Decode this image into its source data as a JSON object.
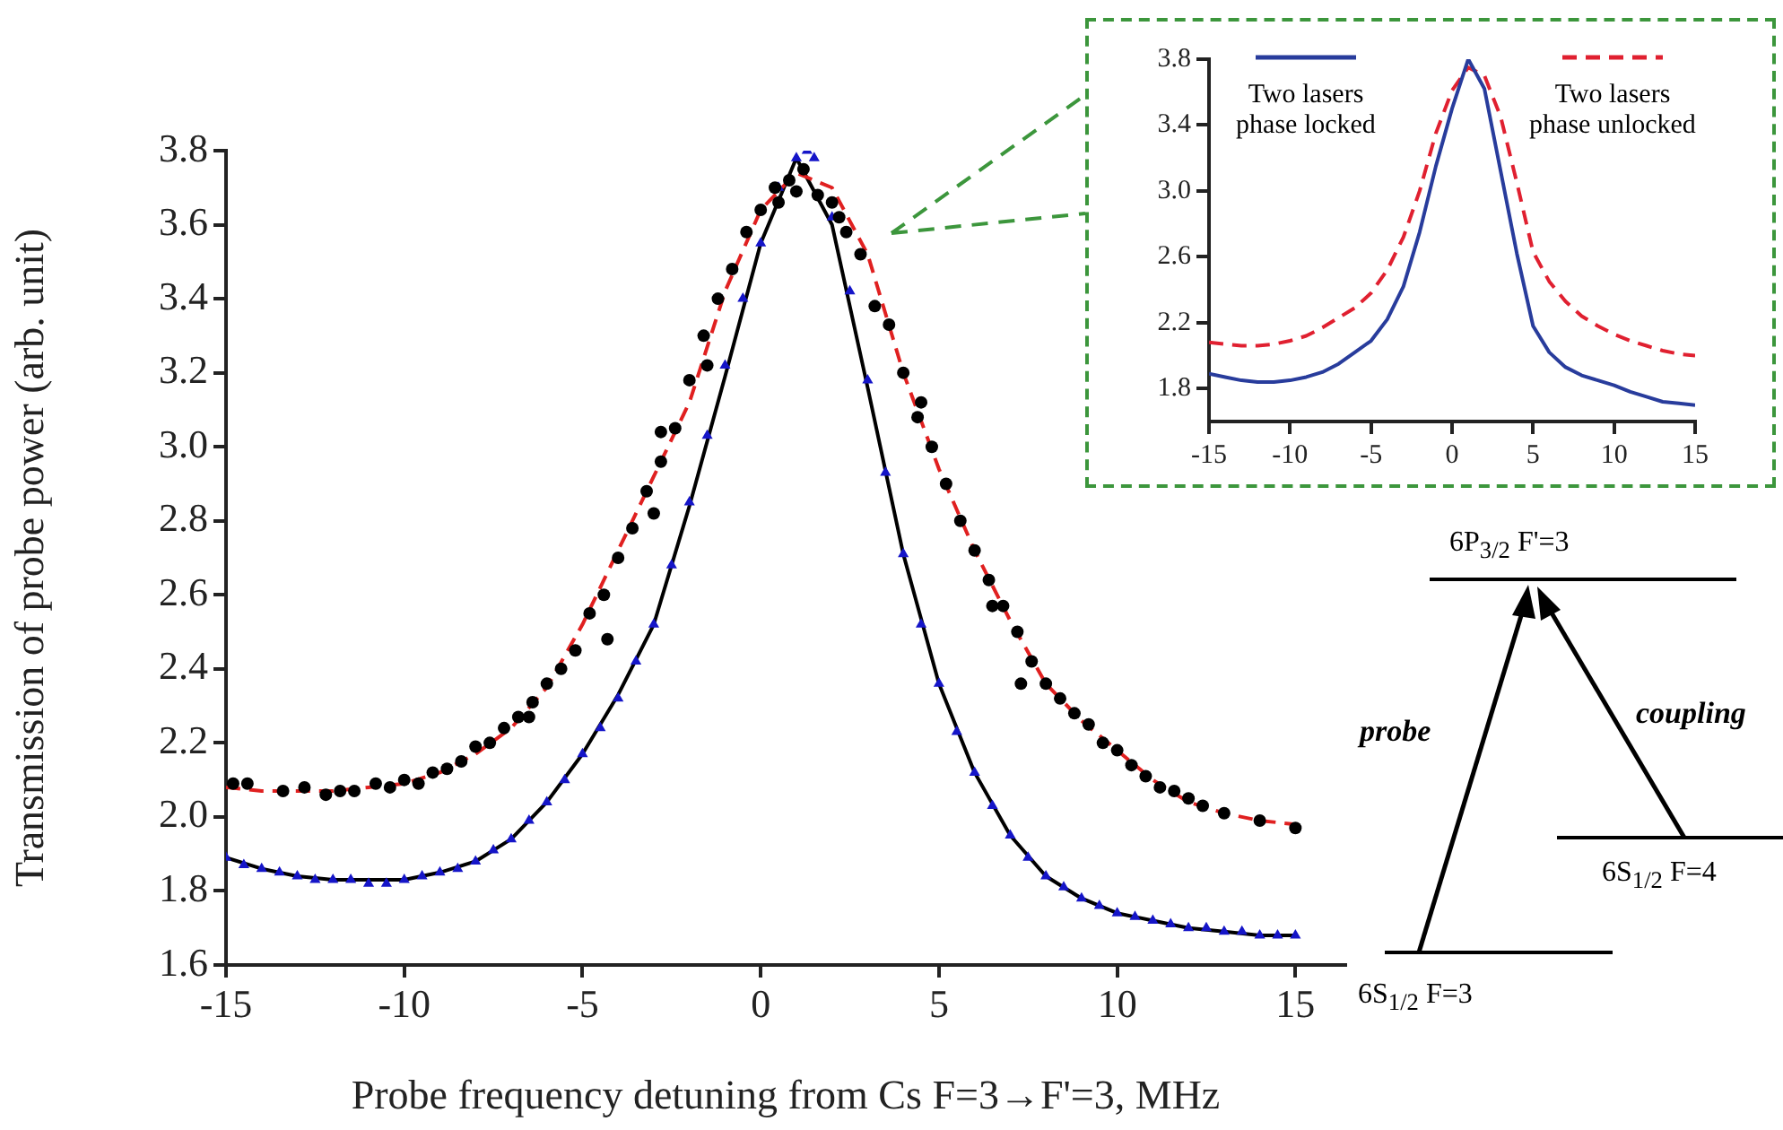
{
  "chart_data": [
    {
      "type": "scatter",
      "xlabel": "Probe frequency detuning from Cs F=3→F'=3, MHz",
      "ylabel": "Transmission of probe power (arb. unit)",
      "xlim": [
        -15,
        16.4
      ],
      "xticks": [
        -15,
        -10,
        -5,
        0,
        5,
        10,
        15
      ],
      "ylim": [
        1.6,
        3.8
      ],
      "yticks": [
        {
          "value": 1.6,
          "label": "1.6"
        },
        {
          "value": 1.8,
          "label": "1.8"
        },
        {
          "value": 2,
          "label": "2.0"
        },
        {
          "value": 2.2,
          "label": "2.2"
        },
        {
          "value": 2.4,
          "label": "2.4"
        },
        {
          "value": 2.6,
          "label": "2.6"
        },
        {
          "value": 2.8,
          "label": "2.8"
        },
        {
          "value": 3,
          "label": "3.0"
        },
        {
          "value": 3.2,
          "label": "3.2"
        },
        {
          "value": 3.4,
          "label": "3.4"
        },
        {
          "value": 3.6,
          "label": "3.6"
        },
        {
          "value": 3.8,
          "label": "3.8"
        }
      ],
      "grid": false,
      "legend": false,
      "annotations": [
        "6P$_{3/2}$ F'=3",
        "probe",
        "coupling",
        "6S$_{1/2}$ F=4",
        "6S$_{1/2}$ F=3"
      ],
      "series": [
        {
          "type": "scatter",
          "marker": "circle",
          "color": "#000000",
          "x": [
            -14.8,
            -14.4,
            -13.4,
            -12.8,
            -12.2,
            -11.8,
            -11.4,
            -10.8,
            -10.4,
            -10.0,
            -9.6,
            -9.2,
            -8.8,
            -8.4,
            -8.0,
            -7.6,
            -7.2,
            -6.8,
            -6.5,
            -6.4,
            -6.0,
            -5.6,
            -5.2,
            -4.8,
            -4.4,
            -4.3,
            -4.0,
            -3.6,
            -3.2,
            -3.0,
            -2.8,
            -2.8,
            -2.4,
            -2.0,
            -1.6,
            -1.5,
            -1.2,
            -0.8,
            -0.4,
            0.0,
            0.4,
            0.5,
            0.8,
            1.0,
            1.2,
            1.6,
            2.0,
            2.2,
            2.4,
            2.8,
            3.2,
            3.6,
            4.0,
            4.4,
            4.5,
            4.8,
            5.2,
            5.6,
            6.0,
            6.4,
            6.5,
            6.8,
            7.2,
            7.3,
            7.6,
            8.0,
            8.4,
            8.8,
            9.2,
            9.6,
            10.0,
            10.4,
            10.8,
            11.2,
            11.6,
            12.0,
            12.4,
            13.0,
            14.0,
            15.0
          ],
          "values": [
            2.09,
            2.09,
            2.07,
            2.08,
            2.06,
            2.07,
            2.07,
            2.09,
            2.08,
            2.1,
            2.09,
            2.12,
            2.13,
            2.15,
            2.19,
            2.2,
            2.24,
            2.27,
            2.27,
            2.31,
            2.36,
            2.4,
            2.45,
            2.55,
            2.6,
            2.48,
            2.7,
            2.78,
            2.88,
            2.82,
            2.96,
            3.04,
            3.05,
            3.18,
            3.3,
            3.22,
            3.4,
            3.48,
            3.58,
            3.64,
            3.7,
            3.66,
            3.72,
            3.69,
            3.75,
            3.68,
            3.66,
            3.62,
            3.58,
            3.52,
            3.38,
            3.33,
            3.2,
            3.08,
            3.12,
            3.0,
            2.9,
            2.8,
            2.72,
            2.64,
            2.57,
            2.57,
            2.5,
            2.36,
            2.42,
            2.36,
            2.32,
            2.28,
            2.25,
            2.2,
            2.18,
            2.14,
            2.11,
            2.08,
            2.07,
            2.05,
            2.03,
            2.01,
            1.99,
            1.97
          ]
        },
        {
          "type": "scatter",
          "marker": "triangle",
          "color": "#1515c8",
          "x": [
            -15,
            -14.5,
            -14,
            -13.5,
            -13,
            -12.5,
            -12,
            -11.5,
            -11,
            -10.5,
            -10,
            -9.5,
            -9,
            -8.5,
            -8,
            -7.5,
            -7,
            -6.5,
            -6,
            -5.5,
            -5,
            -4.5,
            -4,
            -3.5,
            -3,
            -2.5,
            -2,
            -1.5,
            -1,
            -0.5,
            0,
            0.5,
            1,
            1.3,
            1.5,
            2,
            2.5,
            3,
            3.5,
            4,
            4.5,
            5,
            5.5,
            6,
            6.5,
            7,
            7.5,
            8,
            8.5,
            9,
            9.5,
            10,
            10.5,
            11,
            11.5,
            12,
            12.5,
            13,
            13.5,
            14,
            14.5,
            15
          ],
          "values": [
            1.89,
            1.87,
            1.86,
            1.85,
            1.84,
            1.83,
            1.83,
            1.83,
            1.82,
            1.82,
            1.83,
            1.84,
            1.85,
            1.86,
            1.88,
            1.91,
            1.94,
            1.99,
            2.04,
            2.1,
            2.17,
            2.24,
            2.32,
            2.42,
            2.52,
            2.68,
            2.85,
            3.03,
            3.22,
            3.4,
            3.55,
            3.7,
            3.78,
            3.8,
            3.78,
            3.62,
            3.42,
            3.18,
            2.93,
            2.71,
            2.52,
            2.36,
            2.23,
            2.12,
            2.03,
            1.95,
            1.89,
            1.84,
            1.81,
            1.78,
            1.76,
            1.74,
            1.73,
            1.72,
            1.71,
            1.7,
            1.7,
            1.69,
            1.69,
            1.68,
            1.68,
            1.68
          ]
        },
        {
          "type": "line",
          "line_style": "dashed",
          "color": "#e02020",
          "x": [
            -15,
            -14,
            -13,
            -12,
            -11,
            -10,
            -9,
            -8,
            -7,
            -6,
            -5,
            -4,
            -3,
            -2,
            -1,
            0,
            1,
            2,
            3,
            4,
            5,
            6,
            7,
            8,
            9,
            10,
            11,
            12,
            13,
            14,
            15
          ],
          "values": [
            2.08,
            2.07,
            2.07,
            2.07,
            2.08,
            2.09,
            2.12,
            2.17,
            2.24,
            2.35,
            2.52,
            2.72,
            2.92,
            3.12,
            3.42,
            3.64,
            3.74,
            3.7,
            3.52,
            3.2,
            2.94,
            2.72,
            2.53,
            2.36,
            2.26,
            2.18,
            2.1,
            2.04,
            2.01,
            1.99,
            1.98
          ]
        },
        {
          "type": "line",
          "line_style": "solid",
          "color": "#000000",
          "x": [
            -15,
            -14,
            -13,
            -12,
            -11,
            -10,
            -9,
            -8,
            -7,
            -6,
            -5,
            -4,
            -3,
            -2,
            -1,
            0,
            1,
            2,
            3,
            4,
            5,
            6,
            7,
            8,
            9,
            10,
            11,
            12,
            13,
            14,
            15
          ],
          "values": [
            1.89,
            1.86,
            1.84,
            1.83,
            1.83,
            1.83,
            1.85,
            1.88,
            1.94,
            2.04,
            2.17,
            2.33,
            2.52,
            2.84,
            3.19,
            3.55,
            3.78,
            3.6,
            3.16,
            2.71,
            2.36,
            2.12,
            1.95,
            1.84,
            1.78,
            1.74,
            1.72,
            1.7,
            1.69,
            1.68,
            1.68
          ]
        }
      ]
    },
    {
      "type": "line",
      "xlim": [
        -15,
        15
      ],
      "xticks": [
        -15,
        -10,
        -5,
        0,
        5,
        10,
        15
      ],
      "ylim": [
        1.6,
        3.8
      ],
      "yticks": [
        {
          "value": 1.8,
          "label": "1.8"
        },
        {
          "value": 2.2,
          "label": "2.2"
        },
        {
          "value": 2.6,
          "label": "2.6"
        },
        {
          "value": 3,
          "label": "3.0"
        },
        {
          "value": 3.4,
          "label": "3.4"
        },
        {
          "value": 3.8,
          "label": "3.8"
        }
      ],
      "grid": false,
      "legend": "top",
      "series": [
        {
          "name": "Two lasers phase locked",
          "line_style": "solid",
          "color": "#283c9c",
          "x": [
            -15,
            -14,
            -13,
            -12,
            -11,
            -10,
            -9,
            -8,
            -7,
            -6,
            -5,
            -4,
            -3,
            -2,
            -1,
            0,
            1,
            2,
            3,
            4,
            5,
            6,
            7,
            8,
            9,
            10,
            11,
            12,
            13,
            14,
            15
          ],
          "values": [
            1.89,
            1.87,
            1.85,
            1.84,
            1.84,
            1.85,
            1.87,
            1.9,
            1.95,
            2.02,
            2.09,
            2.22,
            2.42,
            2.75,
            3.15,
            3.5,
            3.8,
            3.62,
            3.12,
            2.62,
            2.18,
            2.02,
            1.93,
            1.88,
            1.85,
            1.82,
            1.78,
            1.75,
            1.72,
            1.71,
            1.7
          ]
        },
        {
          "name": "Two lasers phase unlocked",
          "line_style": "dashed",
          "color": "#e02030",
          "x": [
            -15,
            -14,
            -13,
            -12,
            -11,
            -10,
            -9,
            -8,
            -7,
            -6,
            -5,
            -4,
            -3,
            -2,
            -1,
            0,
            1,
            2,
            3,
            4,
            5,
            6,
            7,
            8,
            9,
            10,
            11,
            12,
            13,
            14,
            15
          ],
          "values": [
            2.08,
            2.07,
            2.06,
            2.06,
            2.07,
            2.09,
            2.12,
            2.17,
            2.23,
            2.29,
            2.38,
            2.52,
            2.72,
            3.0,
            3.35,
            3.61,
            3.75,
            3.7,
            3.45,
            3.05,
            2.63,
            2.45,
            2.33,
            2.24,
            2.18,
            2.13,
            2.09,
            2.06,
            2.03,
            2.01,
            2.0
          ]
        }
      ]
    }
  ]
}
